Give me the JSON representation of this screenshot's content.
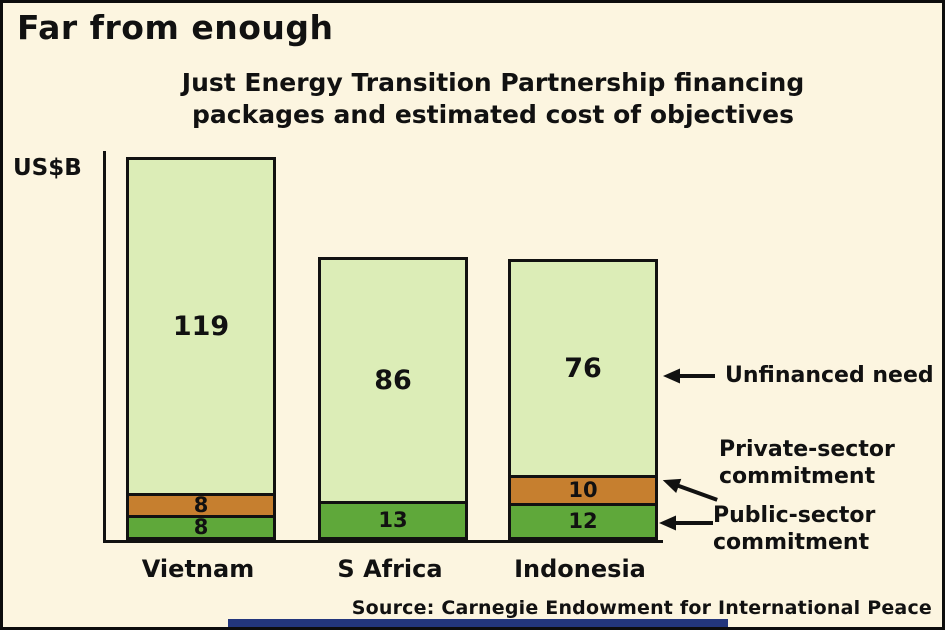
{
  "page": {
    "title": "Far from enough",
    "subtitle_line1": "Just Energy Transition Partnership financing",
    "subtitle_line2": "packages and estimated cost of objectives",
    "axis_unit": "US$B",
    "source": "Source: Carnegie Endowment for International Peace"
  },
  "annotations": {
    "unfinanced": "Unfinanced need",
    "private": "Private-sector commitment",
    "public": "Public-sector commitment"
  },
  "colors": {
    "background": "#fcf5e0",
    "outline": "#111111",
    "unfinanced": "#dcedb7",
    "private": "#c67f2f",
    "public": "#5fa83a",
    "footer_bar": "#23367c"
  },
  "chart_data": {
    "type": "bar",
    "stacked": true,
    "title": "Far from enough",
    "subtitle": "Just Energy Transition Partnership financing packages and estimated cost of objectives",
    "ylabel": "US$B",
    "xlabel": "",
    "grid": false,
    "legend_position": "right-annotations",
    "categories": [
      "Vietnam",
      "S Africa",
      "Indonesia"
    ],
    "series": [
      {
        "name": "Unfinanced need",
        "color": "#dcedb7",
        "values": [
          119,
          86,
          76
        ]
      },
      {
        "name": "Private-sector commitment",
        "color": "#c67f2f",
        "values": [
          8,
          0,
          10
        ]
      },
      {
        "name": "Public-sector commitment",
        "color": "#5fa83a",
        "values": [
          8,
          13,
          12
        ]
      }
    ],
    "totals": [
      135,
      99,
      98
    ],
    "source": "Source: Carnegie Endowment for International Peace"
  }
}
